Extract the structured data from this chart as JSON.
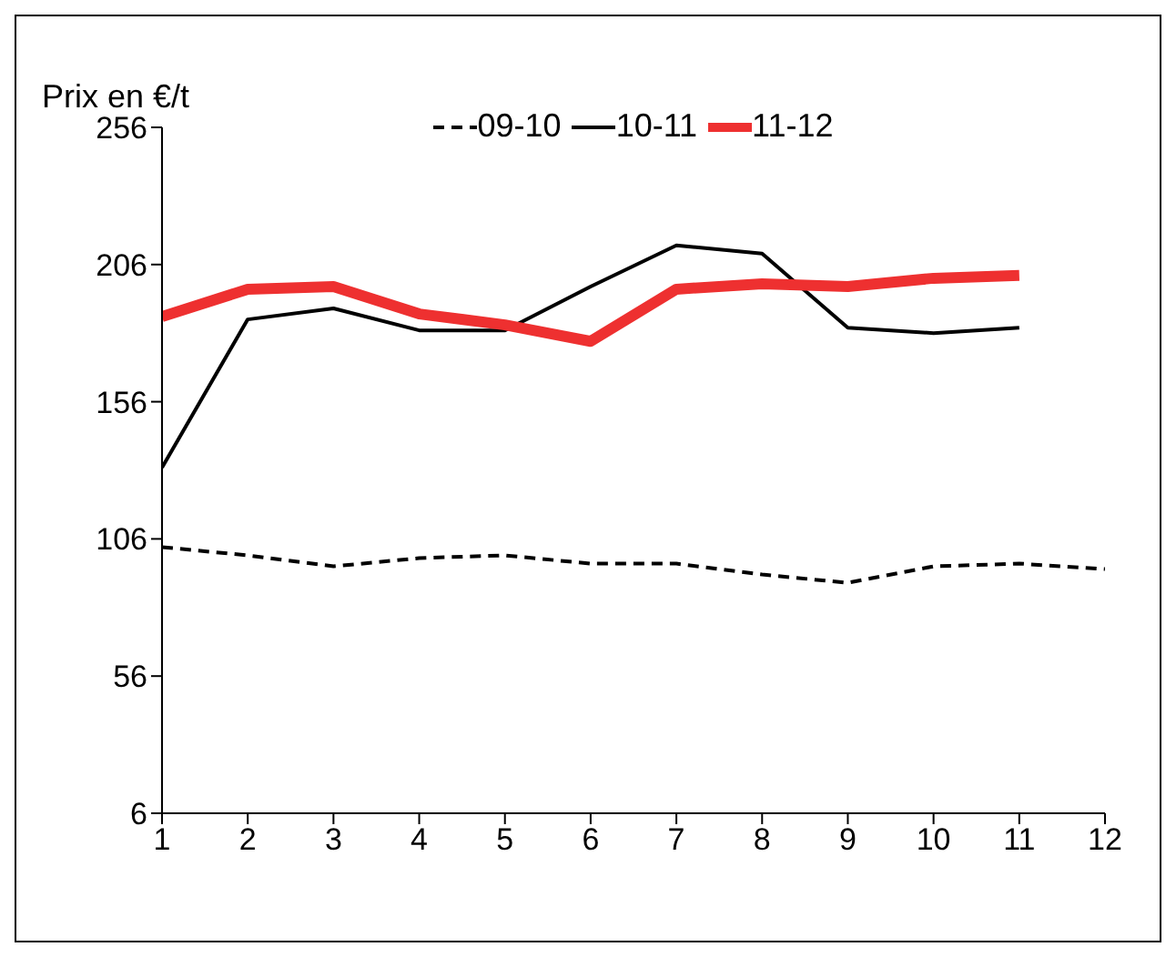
{
  "chart_data": {
    "type": "line",
    "ylabel": "Prix en €/t",
    "xlim": [
      1,
      12
    ],
    "xticks": [
      1,
      2,
      3,
      4,
      5,
      6,
      7,
      8,
      9,
      10,
      11,
      12
    ],
    "x": [
      1,
      2,
      3,
      4,
      5,
      6,
      7,
      8,
      9,
      10,
      11,
      12
    ],
    "ylim": [
      6,
      256
    ],
    "yticks": [
      6,
      56,
      106,
      156,
      206,
      256
    ],
    "grid": false,
    "legend": "top",
    "marker": "none",
    "series": [
      {
        "name": "09-10",
        "color": "#000000",
        "line_style": "dashed",
        "values": [
          103,
          100,
          96,
          99,
          100,
          97,
          97,
          93,
          90,
          96,
          97,
          95
        ]
      },
      {
        "name": "10-11",
        "color": "#000000",
        "line_style": "solid",
        "values": [
          132,
          186,
          190,
          182,
          182,
          198,
          213,
          210,
          183,
          181,
          183,
          null
        ]
      },
      {
        "name": "11-12",
        "color": "#ee3030",
        "line_style": "solid",
        "values": [
          187,
          197,
          198,
          188,
          184,
          178,
          197,
          199,
          198,
          201,
          202,
          null
        ]
      }
    ]
  }
}
